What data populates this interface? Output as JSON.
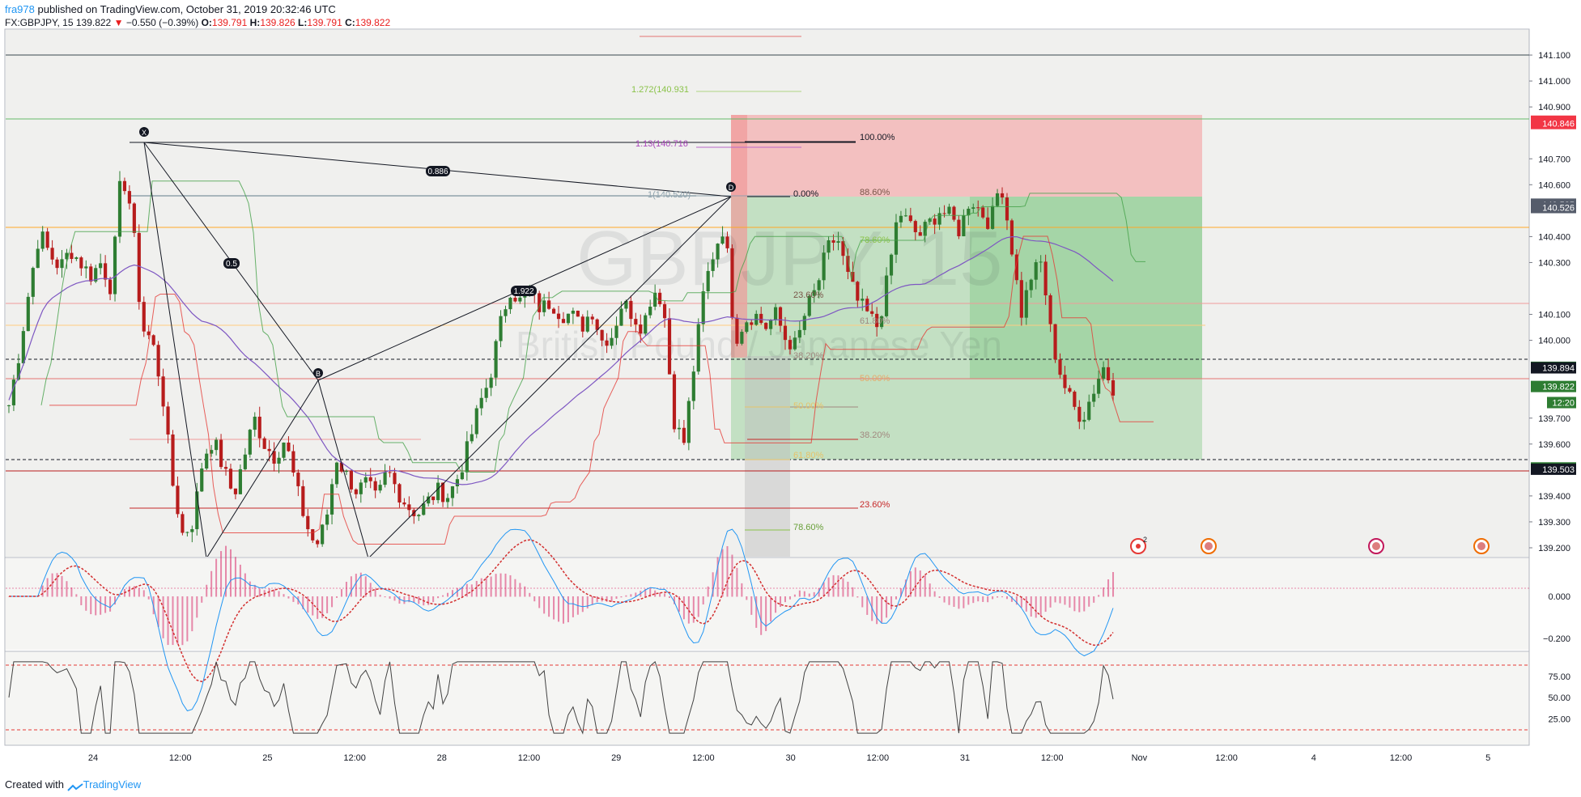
{
  "header": {
    "user": "fra978",
    "published_text": " published on TradingView.com, October 31, 2019 20:32:46 UTC",
    "symbol": "FX:GBPJPY, 15",
    "last": "139.822",
    "arrow": "▼",
    "change": "−0.550 (−0.39%)",
    "o_label": "O:",
    "o_value": "139.791",
    "h_label": "H:",
    "h_value": "139.826",
    "l_label": "L:",
    "l_value": "139.791",
    "c_label": "C:",
    "c_value": "139.822"
  },
  "watermark": {
    "symbol": "GBPJPY, 15",
    "name": "British Pound / Japanese Yen"
  },
  "footer": {
    "created_with": "Created with",
    "brand": "TradingView"
  },
  "colors": {
    "up": "#2e7d32",
    "down": "#b71c1c",
    "loss_zone": "#ef9a9a",
    "profit_zone": "#a5d6a7",
    "ma": "#7e57c2",
    "macd": "#2196f3",
    "signal": "#d32f2f",
    "hist": "#d81b60"
  },
  "chart_data": [
    {
      "type": "line",
      "title": "GBPJPY, 15",
      "xlabel": "",
      "ylabel": "",
      "x_tick_labels": [
        "24",
        "12:00",
        "25",
        "12:00",
        "28",
        "12:00",
        "29",
        "12:00",
        "30",
        "12:00",
        "31",
        "12:00",
        "Nov",
        "12:00",
        "4",
        "12:00",
        "5"
      ],
      "y_tick_labels": [
        "141.100",
        "141.000",
        "140.900",
        "140.700",
        "140.600",
        "140.400",
        "140.300",
        "140.100",
        "140.000",
        "139.700",
        "139.600",
        "139.400",
        "139.300",
        "139.200"
      ],
      "ylim": [
        139.17,
        141.2
      ],
      "series": [
        {
          "values": [
            139.75,
            139.95,
            140.2,
            140.42,
            140.33,
            140.28,
            140.35,
            140.3,
            140.25,
            140.3,
            140.2,
            140.65,
            140.5,
            140.05,
            140.0,
            139.8,
            139.45,
            139.25,
            139.3,
            139.55,
            139.62,
            139.5,
            139.4,
            139.55,
            139.7,
            139.6,
            139.55,
            139.62,
            139.45,
            139.3,
            139.2,
            139.3,
            139.55,
            139.48,
            139.42,
            139.45,
            139.38,
            139.5,
            139.42,
            139.36,
            139.33,
            139.38,
            139.42,
            139.4,
            139.48,
            139.6,
            139.75,
            139.85,
            140.05,
            140.2,
            140.15,
            140.18,
            140.12,
            140.15,
            140.1,
            140.1,
            140.05,
            140.12,
            140.0,
            140.02,
            140.15,
            140.1,
            140.05,
            140.2,
            140.15,
            139.7,
            139.6,
            139.9,
            140.2,
            140.35,
            140.45,
            140.0,
            140.08,
            140.1,
            140.05,
            140.1,
            140.0,
            139.98,
            140.12,
            140.2,
            140.35,
            140.4,
            140.25,
            140.15,
            140.1,
            140.05,
            140.25,
            140.5,
            140.45,
            140.4,
            140.45,
            140.5,
            140.48,
            140.42,
            140.55,
            140.5,
            140.45,
            140.62,
            140.38,
            140.1,
            140.25,
            140.3,
            140.0,
            139.85,
            139.75,
            139.7,
            139.8,
            139.9,
            139.82
          ]
        }
      ],
      "annotations": [
        "0.886",
        "0.5",
        "1.922",
        "X",
        "B",
        "D",
        "100.00%",
        "88.60%",
        "0.00%",
        "23.60%",
        "61.80%",
        "38.20%",
        "50.00%",
        "78.60%",
        "1.272(140.931",
        "1.13(140.716",
        "1(140.520)"
      ],
      "price_labels": [
        {
          "price": 140.845,
          "text": "140.845",
          "bg": "#f23645",
          "fg": "#ffffff"
        },
        {
          "price": 140.836,
          "text": "140.846",
          "bg": "#f23645",
          "fg": "#ffffff"
        },
        {
          "price": 140.525,
          "text": "140.525",
          "bg": "#555c6b",
          "fg": "#ffffff"
        },
        {
          "price": 140.512,
          "text": "140.526",
          "bg": "#555c6b",
          "fg": "#ffffff"
        },
        {
          "price": 139.896,
          "text": "139.896",
          "bg": "#2e7d32",
          "fg": "#ffffff"
        },
        {
          "price": 139.894,
          "text": "139.894",
          "bg": "#131722",
          "fg": "#ffffff"
        },
        {
          "price": 139.822,
          "text": "139.822",
          "bg": "#2e7d32",
          "fg": "#ffffff"
        },
        {
          "price": 139.76,
          "text": "12:20",
          "bg": "#2e7d32",
          "fg": "#ffffff"
        },
        {
          "price": 139.508,
          "text": "139.508",
          "bg": "#2e7d32",
          "fg": "#ffffff"
        },
        {
          "price": 139.503,
          "text": "139.503",
          "bg": "#131722",
          "fg": "#ffffff"
        }
      ]
    },
    {
      "type": "line",
      "title": "",
      "y_tick_labels": [
        "0.000",
        "−0.200"
      ],
      "ylim": [
        -0.28,
        0.15
      ]
    },
    {
      "type": "line",
      "title": "",
      "y_tick_labels": [
        "75.00",
        "50.00",
        "25.00"
      ],
      "ylim": [
        5,
        95
      ],
      "levels": [
        80,
        20
      ]
    }
  ]
}
